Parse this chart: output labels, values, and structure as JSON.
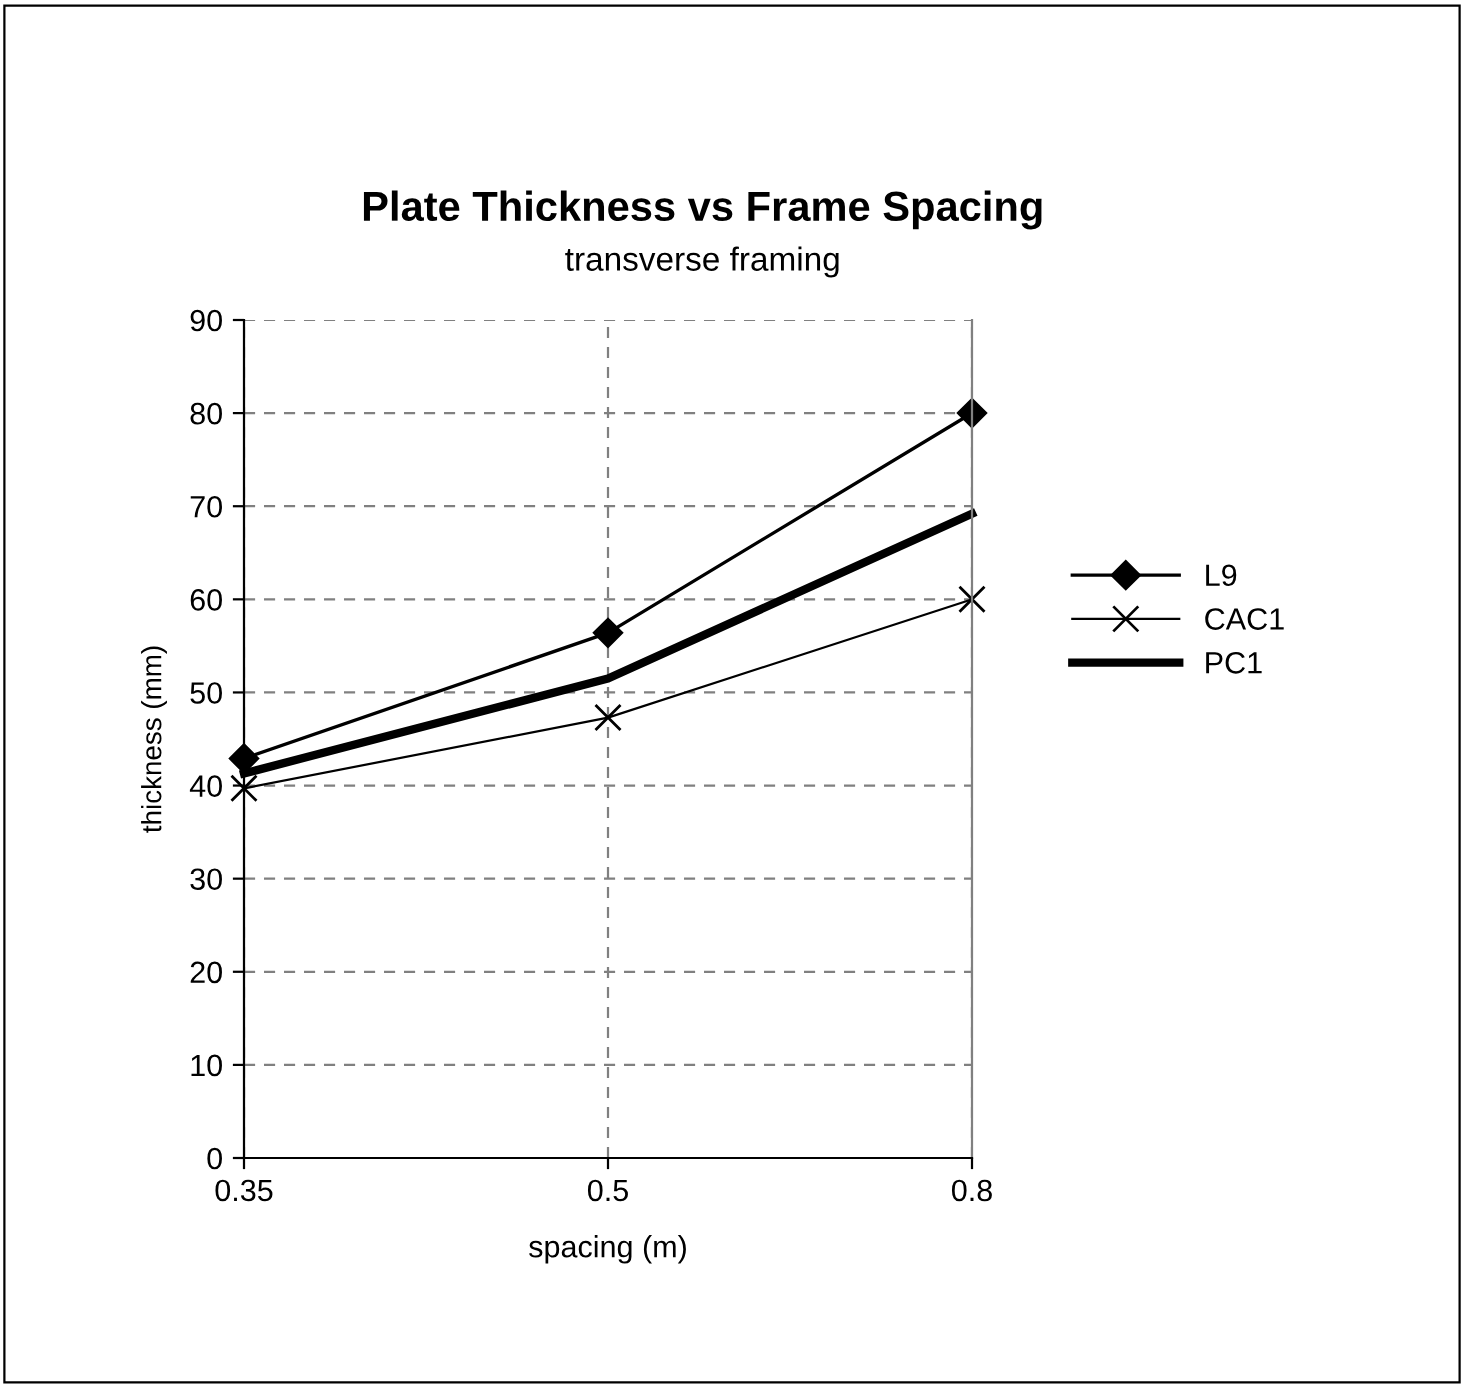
{
  "chart_data": {
    "type": "line",
    "title": "Plate Thickness vs Frame Spacing",
    "subtitle": "transverse framing",
    "xlabel": "spacing (m)",
    "ylabel": "thickness (mm)",
    "categories": [
      "0.35",
      "0.5",
      "0.8"
    ],
    "series": [
      {
        "name": "L9",
        "color": "#000000",
        "values": [
          42.9,
          56.4,
          80
        ],
        "marker": "diamond"
      },
      {
        "name": "CAC1",
        "color": "#000000",
        "values": [
          39.7,
          47.3,
          60
        ],
        "marker": "cross"
      },
      {
        "name": "PC1",
        "color": "#000000",
        "values": [
          41.3,
          51.5,
          69.2
        ],
        "marker": "none"
      }
    ],
    "ylim": [
      0,
      90
    ],
    "yticks": [
      0,
      10,
      20,
      30,
      40,
      50,
      60,
      70,
      80,
      90
    ],
    "grid": true,
    "legend": "right",
    "line_style": "solid"
  }
}
